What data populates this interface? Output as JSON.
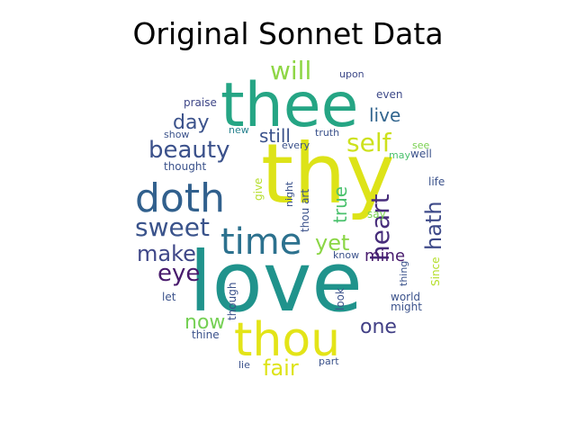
{
  "figure": {
    "title": "Original Sonnet Data"
  },
  "wordcloud": {
    "words": [
      {
        "text": "thy",
        "color": "#dde318"
      },
      {
        "text": "love",
        "color": "#20938c"
      },
      {
        "text": "thee",
        "color": "#25a584"
      },
      {
        "text": "thou",
        "color": "#e3e418"
      },
      {
        "text": "doth",
        "color": "#31608d"
      },
      {
        "text": "time",
        "color": "#2c718e"
      },
      {
        "text": "sweet",
        "color": "#3a538b"
      },
      {
        "text": "beauty",
        "color": "#3b518b"
      },
      {
        "text": "self",
        "color": "#cde11d"
      },
      {
        "text": "heart",
        "color": "#472d7b"
      },
      {
        "text": "will",
        "color": "#8ed645"
      },
      {
        "text": "eye",
        "color": "#481a6c"
      },
      {
        "text": "make",
        "color": "#3f4788"
      },
      {
        "text": "yet",
        "color": "#8bd646"
      },
      {
        "text": "hath",
        "color": "#3e4a89"
      },
      {
        "text": "day",
        "color": "#3b528b"
      },
      {
        "text": "live",
        "color": "#32658e"
      },
      {
        "text": "still",
        "color": "#3b528b"
      },
      {
        "text": "fair",
        "color": "#dde318"
      },
      {
        "text": "now",
        "color": "#75d054"
      },
      {
        "text": "one",
        "color": "#424086"
      },
      {
        "text": "mine",
        "color": "#481b6d"
      },
      {
        "text": "true",
        "color": "#4ac16d"
      },
      {
        "text": "upon",
        "color": "#3e4a89"
      },
      {
        "text": "praise",
        "color": "#3f4788"
      },
      {
        "text": "even",
        "color": "#3e4a89"
      },
      {
        "text": "show",
        "color": "#3b528b"
      },
      {
        "text": "new",
        "color": "#26818e"
      },
      {
        "text": "truth",
        "color": "#3b528b"
      },
      {
        "text": "every",
        "color": "#3b528b"
      },
      {
        "text": "see",
        "color": "#7ad151"
      },
      {
        "text": "thought",
        "color": "#3b528b"
      },
      {
        "text": "may",
        "color": "#4ac16d"
      },
      {
        "text": "well",
        "color": "#3b528b"
      },
      {
        "text": "give",
        "color": "#b5de2b"
      },
      {
        "text": "night",
        "color": "#3b528b"
      },
      {
        "text": "thou art",
        "color": "#3b528b"
      },
      {
        "text": "life",
        "color": "#3b528b"
      },
      {
        "text": "say",
        "color": "#7ad151"
      },
      {
        "text": "know",
        "color": "#3b528b"
      },
      {
        "text": "thing",
        "color": "#3b528b"
      },
      {
        "text": "Since",
        "color": "#b5de2b"
      },
      {
        "text": "let",
        "color": "#3b528b"
      },
      {
        "text": "though",
        "color": "#3b528b"
      },
      {
        "text": "look",
        "color": "#3b528b"
      },
      {
        "text": "world",
        "color": "#3b528b"
      },
      {
        "text": "might",
        "color": "#3b528b"
      },
      {
        "text": "thine",
        "color": "#3b528b"
      },
      {
        "text": "lie",
        "color": "#3b528b"
      },
      {
        "text": "part",
        "color": "#3b528b"
      }
    ]
  }
}
